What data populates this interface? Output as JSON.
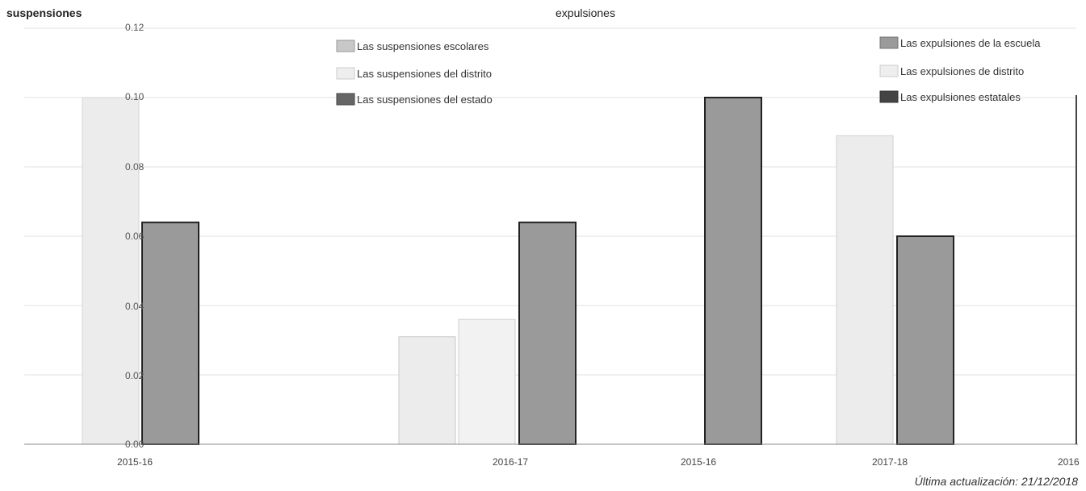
{
  "chart_data": [
    {
      "type": "bar",
      "title": "suspensiones",
      "categories": [
        "2015-16",
        "2016-17"
      ],
      "series": [
        {
          "name": "Las suspensiones escolares",
          "values": [
            null,
            0.0
          ],
          "color": "#c8c8c8"
        },
        {
          "name": "Las suspensiones del distrito",
          "values": [
            0.1,
            0.031
          ],
          "color": "#e8e8e8"
        },
        {
          "name": "Las suspensiones del estado",
          "values": [
            0.064,
            0.064
          ],
          "color": "#9a9a9a"
        }
      ],
      "ylim": [
        0,
        0.12
      ],
      "yticks": [
        "0.00",
        "0.02",
        "0.04",
        "0.06",
        "0.08",
        "0.10",
        "0.12"
      ],
      "legend_placement": "top-center",
      "grid": true
    },
    {
      "type": "bar",
      "title": "expulsiones",
      "categories": [
        "2015-16",
        "2017-18",
        "2016"
      ],
      "series": [
        {
          "name": "Las expulsiones de la escuela",
          "values": [
            0.1,
            0.06,
            null
          ],
          "color": "#9a9a9a"
        },
        {
          "name": "Las expulsiones de distrito",
          "values": [
            0.0,
            0.089,
            null
          ],
          "color": "#e8e8e8"
        },
        {
          "name": "Las expulsiones estatales",
          "values": [
            null,
            null,
            null
          ],
          "color": "#444444"
        }
      ],
      "legend_placement": "top-right",
      "grid": true
    }
  ],
  "extra_bars": {
    "s_2016_17_mid": 0.036
  },
  "footer": {
    "updated": "Última actualización: 21/12/2018"
  }
}
